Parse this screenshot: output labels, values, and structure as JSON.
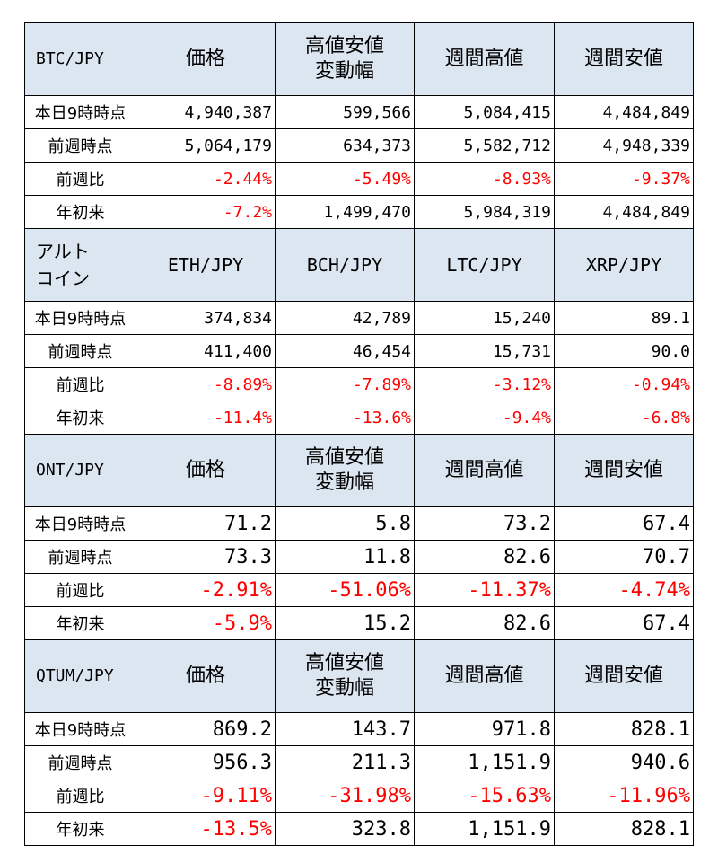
{
  "colors": {
    "header_bg": "#dce6f1",
    "negative": "#ff0000"
  },
  "sections": [
    {
      "label": "BTC/JPY",
      "headers": [
        "価格",
        "高値安値\n変動幅",
        "週間高値",
        "週間安値"
      ],
      "rows": [
        {
          "label": "本日9時時点",
          "values": [
            "4,940,387",
            "599,566",
            "5,084,415",
            "4,484,849"
          ]
        },
        {
          "label": "前週時点",
          "values": [
            "5,064,179",
            "634,373",
            "5,582,712",
            "4,948,339"
          ]
        },
        {
          "label": "前週比",
          "values": [
            "-2.44%",
            "-5.49%",
            "-8.93%",
            "-9.37%"
          ]
        },
        {
          "label": "年初来",
          "values": [
            "-7.2%",
            "1,499,470",
            "5,984,319",
            "4,484,849"
          ]
        }
      ]
    },
    {
      "label": "アルト\nコイン",
      "headers": [
        "ETH/JPY",
        "BCH/JPY",
        "LTC/JPY",
        "XRP/JPY"
      ],
      "rows": [
        {
          "label": "本日9時時点",
          "values": [
            "374,834",
            "42,789",
            "15,240",
            "89.1"
          ]
        },
        {
          "label": "前週時点",
          "values": [
            "411,400",
            "46,454",
            "15,731",
            "90.0"
          ]
        },
        {
          "label": "前週比",
          "values": [
            "-8.89%",
            "-7.89%",
            "-3.12%",
            "-0.94%"
          ]
        },
        {
          "label": "年初来",
          "values": [
            "-11.4%",
            "-13.6%",
            "-9.4%",
            "-6.8%"
          ]
        }
      ]
    },
    {
      "label": "ONT/JPY",
      "headers": [
        "価格",
        "高値安値\n変動幅",
        "週間高値",
        "週間安値"
      ],
      "rows": [
        {
          "label": "本日9時時点",
          "values": [
            "71.2",
            "5.8",
            "73.2",
            "67.4"
          ]
        },
        {
          "label": "前週時点",
          "values": [
            "73.3",
            "11.8",
            "82.6",
            "70.7"
          ]
        },
        {
          "label": "前週比",
          "values": [
            "-2.91%",
            "-51.06%",
            "-11.37%",
            "-4.74%"
          ]
        },
        {
          "label": "年初来",
          "values": [
            "-5.9%",
            "15.2",
            "82.6",
            "67.4"
          ]
        }
      ]
    },
    {
      "label": "QTUM/JPY",
      "headers": [
        "価格",
        "高値安値\n変動幅",
        "週間高値",
        "週間安値"
      ],
      "rows": [
        {
          "label": "本日9時時点",
          "values": [
            "869.2",
            "143.7",
            "971.8",
            "828.1"
          ]
        },
        {
          "label": "前週時点",
          "values": [
            "956.3",
            "211.3",
            "1,151.9",
            "940.6"
          ]
        },
        {
          "label": "前週比",
          "values": [
            "-9.11%",
            "-31.98%",
            "-15.63%",
            "-11.96%"
          ]
        },
        {
          "label": "年初来",
          "values": [
            "-13.5%",
            "323.8",
            "1,151.9",
            "828.1"
          ]
        }
      ]
    }
  ]
}
